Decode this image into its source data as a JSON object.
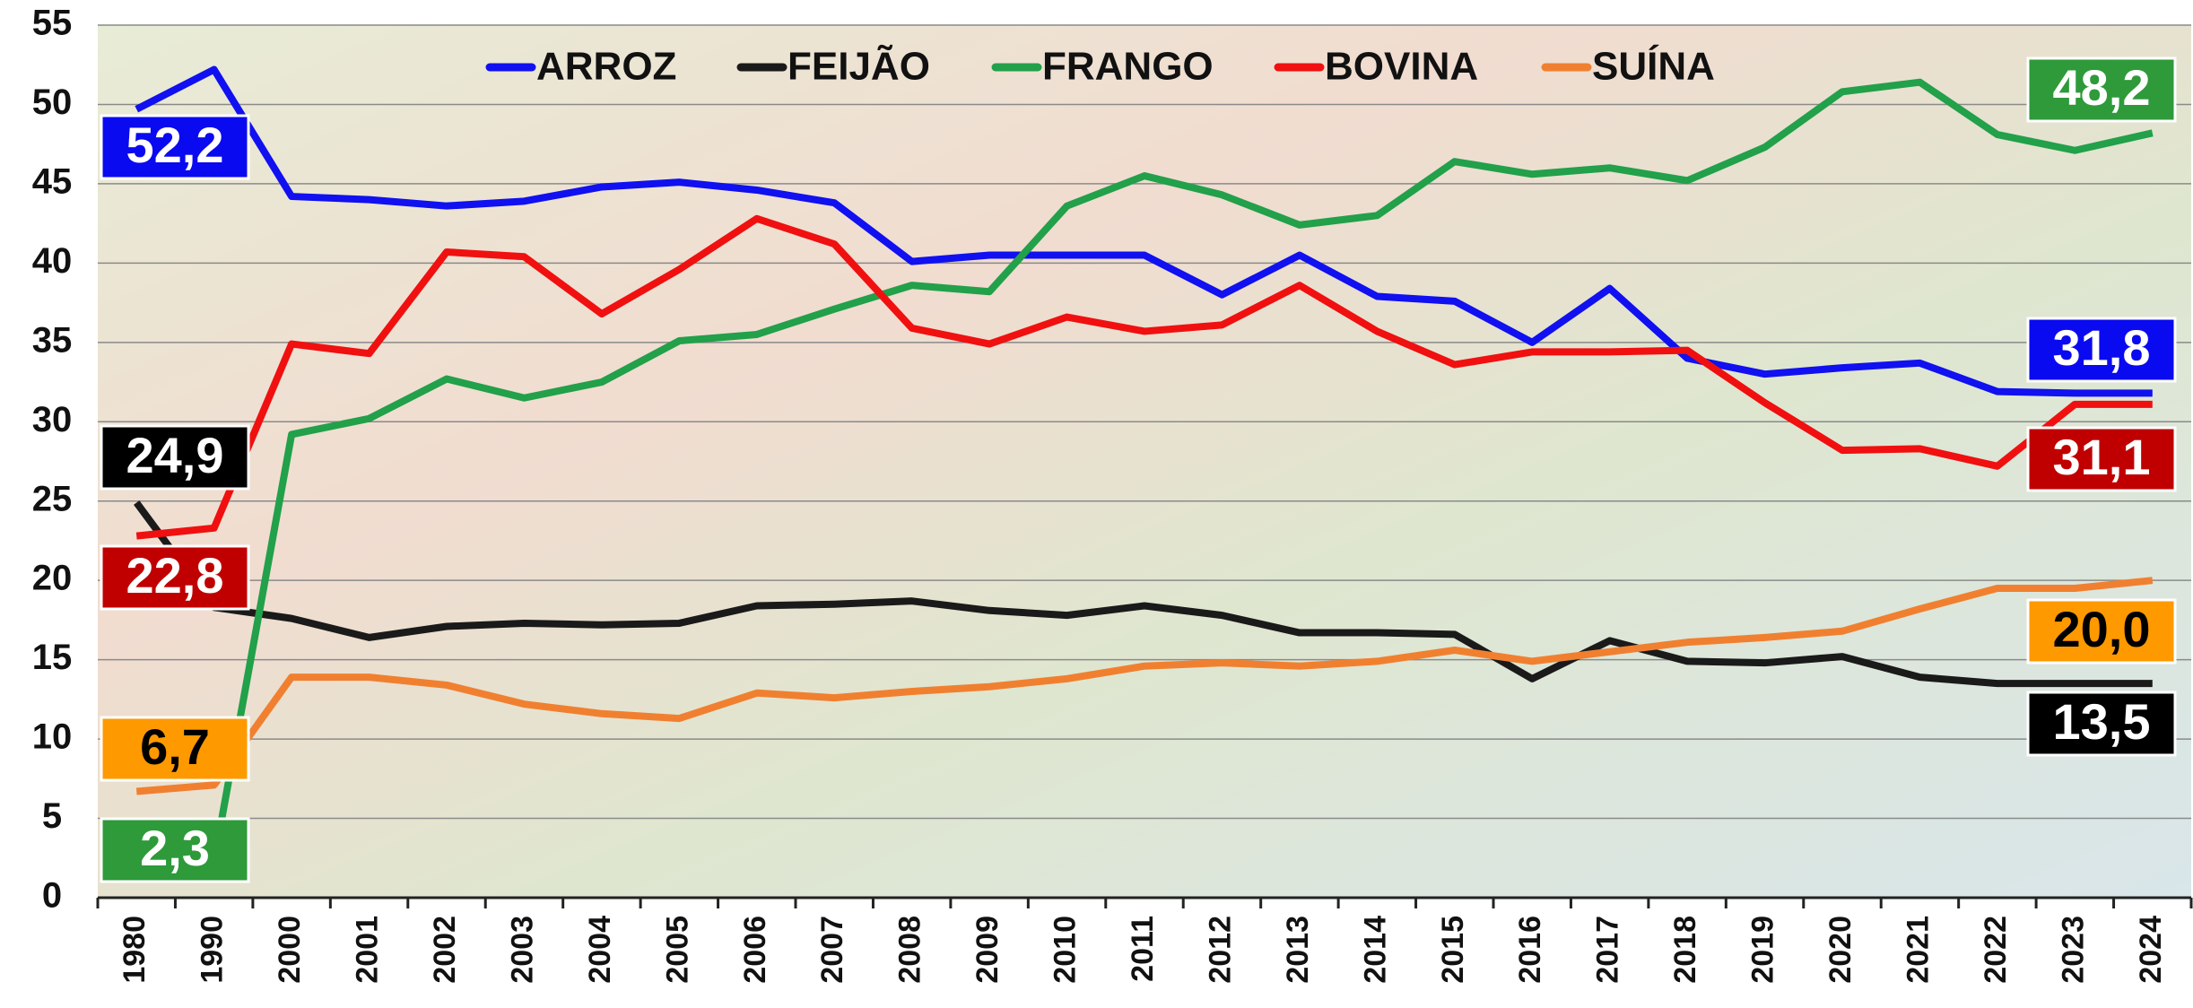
{
  "chart_data": {
    "type": "line",
    "categories": [
      "1980",
      "1990",
      "2000",
      "2001",
      "2002",
      "2003",
      "2004",
      "2005",
      "2006",
      "2007",
      "2008",
      "2009",
      "2010",
      "2011",
      "2012",
      "2013",
      "2014",
      "2015",
      "2016",
      "2017",
      "2018",
      "2019",
      "2020",
      "2021",
      "2022",
      "2023",
      "2024"
    ],
    "ylim": [
      0,
      55
    ],
    "yticks": [
      0,
      5,
      10,
      15,
      20,
      25,
      30,
      35,
      40,
      45,
      50,
      55
    ],
    "grid": true,
    "legend": "top",
    "series": [
      {
        "name": "ARROZ",
        "color": "#1010f0",
        "values": [
          49.7,
          52.2,
          44.2,
          44.0,
          43.6,
          43.9,
          44.8,
          45.1,
          44.6,
          43.8,
          40.1,
          40.5,
          40.5,
          40.5,
          38.0,
          40.5,
          37.9,
          37.6,
          35.0,
          38.4,
          34.0,
          33.0,
          33.4,
          33.7,
          31.9,
          31.8,
          31.8
        ],
        "value_labels": [
          null,
          "52,2",
          null,
          null,
          null,
          null,
          null,
          null,
          null,
          null,
          null,
          null,
          null,
          null,
          null,
          null,
          null,
          null,
          null,
          null,
          null,
          null,
          null,
          null,
          null,
          null,
          "31,8"
        ]
      },
      {
        "name": "FEIJÃO",
        "color": "#1a1a1a",
        "values": [
          24.9,
          18.3,
          17.6,
          16.4,
          17.1,
          17.3,
          17.2,
          17.3,
          18.4,
          18.5,
          18.7,
          18.1,
          17.8,
          18.4,
          17.8,
          16.7,
          16.7,
          16.6,
          13.8,
          16.2,
          14.9,
          14.8,
          15.2,
          13.9,
          13.5,
          13.5,
          13.5
        ],
        "value_labels": [
          "24,9",
          null,
          null,
          null,
          null,
          null,
          null,
          null,
          null,
          null,
          null,
          null,
          null,
          null,
          null,
          null,
          null,
          null,
          null,
          null,
          null,
          null,
          null,
          null,
          null,
          null,
          "13,5"
        ]
      },
      {
        "name": "FRANGO",
        "color": "#22a04a",
        "values": [
          null,
          2.3,
          29.2,
          30.2,
          32.7,
          31.5,
          32.5,
          35.1,
          35.5,
          37.1,
          38.6,
          38.2,
          43.6,
          45.5,
          44.3,
          42.4,
          43.0,
          46.4,
          45.6,
          46.0,
          45.2,
          47.3,
          50.8,
          51.4,
          48.1,
          47.1,
          48.2
        ],
        "value_labels": [
          null,
          "2,3",
          null,
          null,
          null,
          null,
          null,
          null,
          null,
          null,
          null,
          null,
          null,
          null,
          null,
          null,
          null,
          null,
          null,
          null,
          null,
          null,
          null,
          null,
          null,
          null,
          "48,2"
        ]
      },
      {
        "name": "BOVINA",
        "color": "#f01010",
        "values": [
          22.8,
          23.3,
          34.9,
          34.3,
          40.7,
          40.4,
          36.8,
          39.6,
          42.8,
          41.2,
          35.9,
          34.9,
          36.6,
          35.7,
          36.1,
          38.6,
          35.7,
          33.6,
          34.4,
          34.4,
          34.5,
          31.2,
          28.2,
          28.3,
          27.2,
          31.1,
          31.1
        ],
        "value_labels": [
          "22,8",
          null,
          null,
          null,
          null,
          null,
          null,
          null,
          null,
          null,
          null,
          null,
          null,
          null,
          null,
          null,
          null,
          null,
          null,
          null,
          null,
          null,
          null,
          null,
          null,
          null,
          "31,1"
        ]
      },
      {
        "name": "SUÍNA",
        "color": "#f08030",
        "values": [
          6.7,
          7.1,
          13.9,
          13.9,
          13.4,
          12.2,
          11.6,
          11.3,
          12.9,
          12.6,
          13.0,
          13.3,
          13.8,
          14.6,
          14.8,
          14.6,
          14.9,
          15.6,
          14.9,
          15.5,
          16.1,
          16.4,
          16.8,
          18.2,
          19.5,
          19.5,
          20.0
        ],
        "value_labels": [
          "6,7",
          null,
          null,
          null,
          null,
          null,
          null,
          null,
          null,
          null,
          null,
          null,
          null,
          null,
          null,
          null,
          null,
          null,
          null,
          null,
          null,
          null,
          null,
          null,
          null,
          null,
          "20,0"
        ]
      }
    ]
  }
}
